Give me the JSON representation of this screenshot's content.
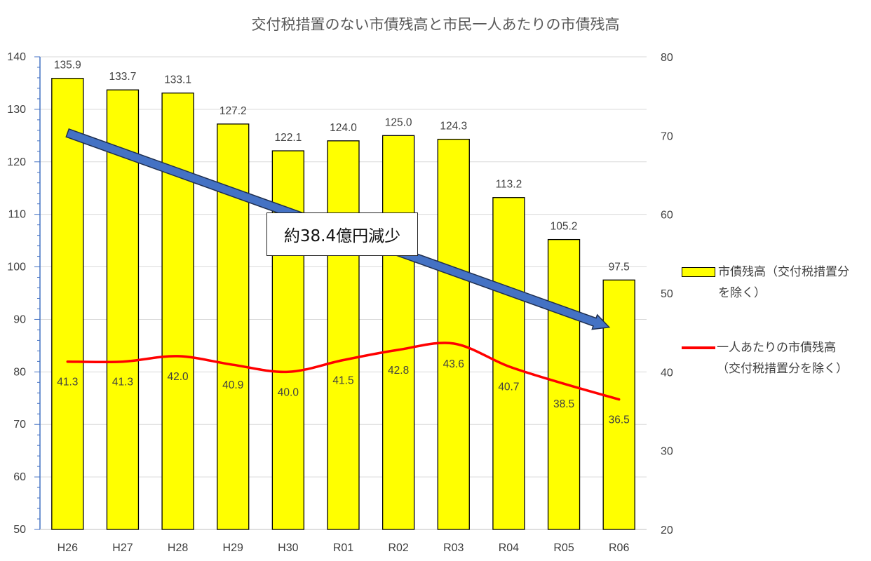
{
  "chart_data": {
    "type": "bar",
    "title": "交付税措置のない市債残高と市民一人あたりの市債残高",
    "categories": [
      "H26",
      "H27",
      "H28",
      "H29",
      "H30",
      "R01",
      "R02",
      "R03",
      "R04",
      "R05",
      "R06"
    ],
    "series": [
      {
        "name": "市債残高（交付税措置分を除く）",
        "type": "bar",
        "axis": "left",
        "values": [
          135.9,
          133.7,
          133.1,
          127.2,
          122.1,
          124.0,
          125.0,
          124.3,
          113.2,
          105.2,
          97.5
        ],
        "labels": [
          "135.9",
          "133.7",
          "133.1",
          "127.2",
          "122.1",
          "124.0",
          "125.0",
          "124.3",
          "113.2",
          "105.2",
          "97.5"
        ],
        "color": "#FFFF00"
      },
      {
        "name": "一人あたりの市債残高（交付税措置分を除く）",
        "type": "line",
        "axis": "right",
        "values": [
          41.3,
          41.3,
          42.0,
          40.9,
          40.0,
          41.5,
          42.8,
          43.6,
          40.7,
          38.5,
          36.5
        ],
        "labels": [
          "41.3",
          "41.3",
          "42.0",
          "40.9",
          "40.0",
          "41.5",
          "42.8",
          "43.6",
          "40.7",
          "38.5",
          "36.5"
        ],
        "color": "#FF0000"
      }
    ],
    "y_left": {
      "range": [
        50,
        140
      ],
      "ticks": [
        "50",
        "60",
        "70",
        "80",
        "90",
        "100",
        "110",
        "120",
        "130",
        "140"
      ]
    },
    "y_right": {
      "range": [
        20,
        80
      ],
      "ticks": [
        "20",
        "30",
        "40",
        "50",
        "60",
        "70",
        "80"
      ]
    },
    "grid": true,
    "legend": "right",
    "annotation": {
      "text": "約38.4億円減少",
      "arrow_color": "#4472C4"
    }
  },
  "legend": {
    "bar_line1": "市債残高（交付税措置分",
    "bar_line2": "を除く）",
    "line_line1": "一人あたりの市債残高",
    "line_line2": "（交付税措置分を除く）"
  }
}
